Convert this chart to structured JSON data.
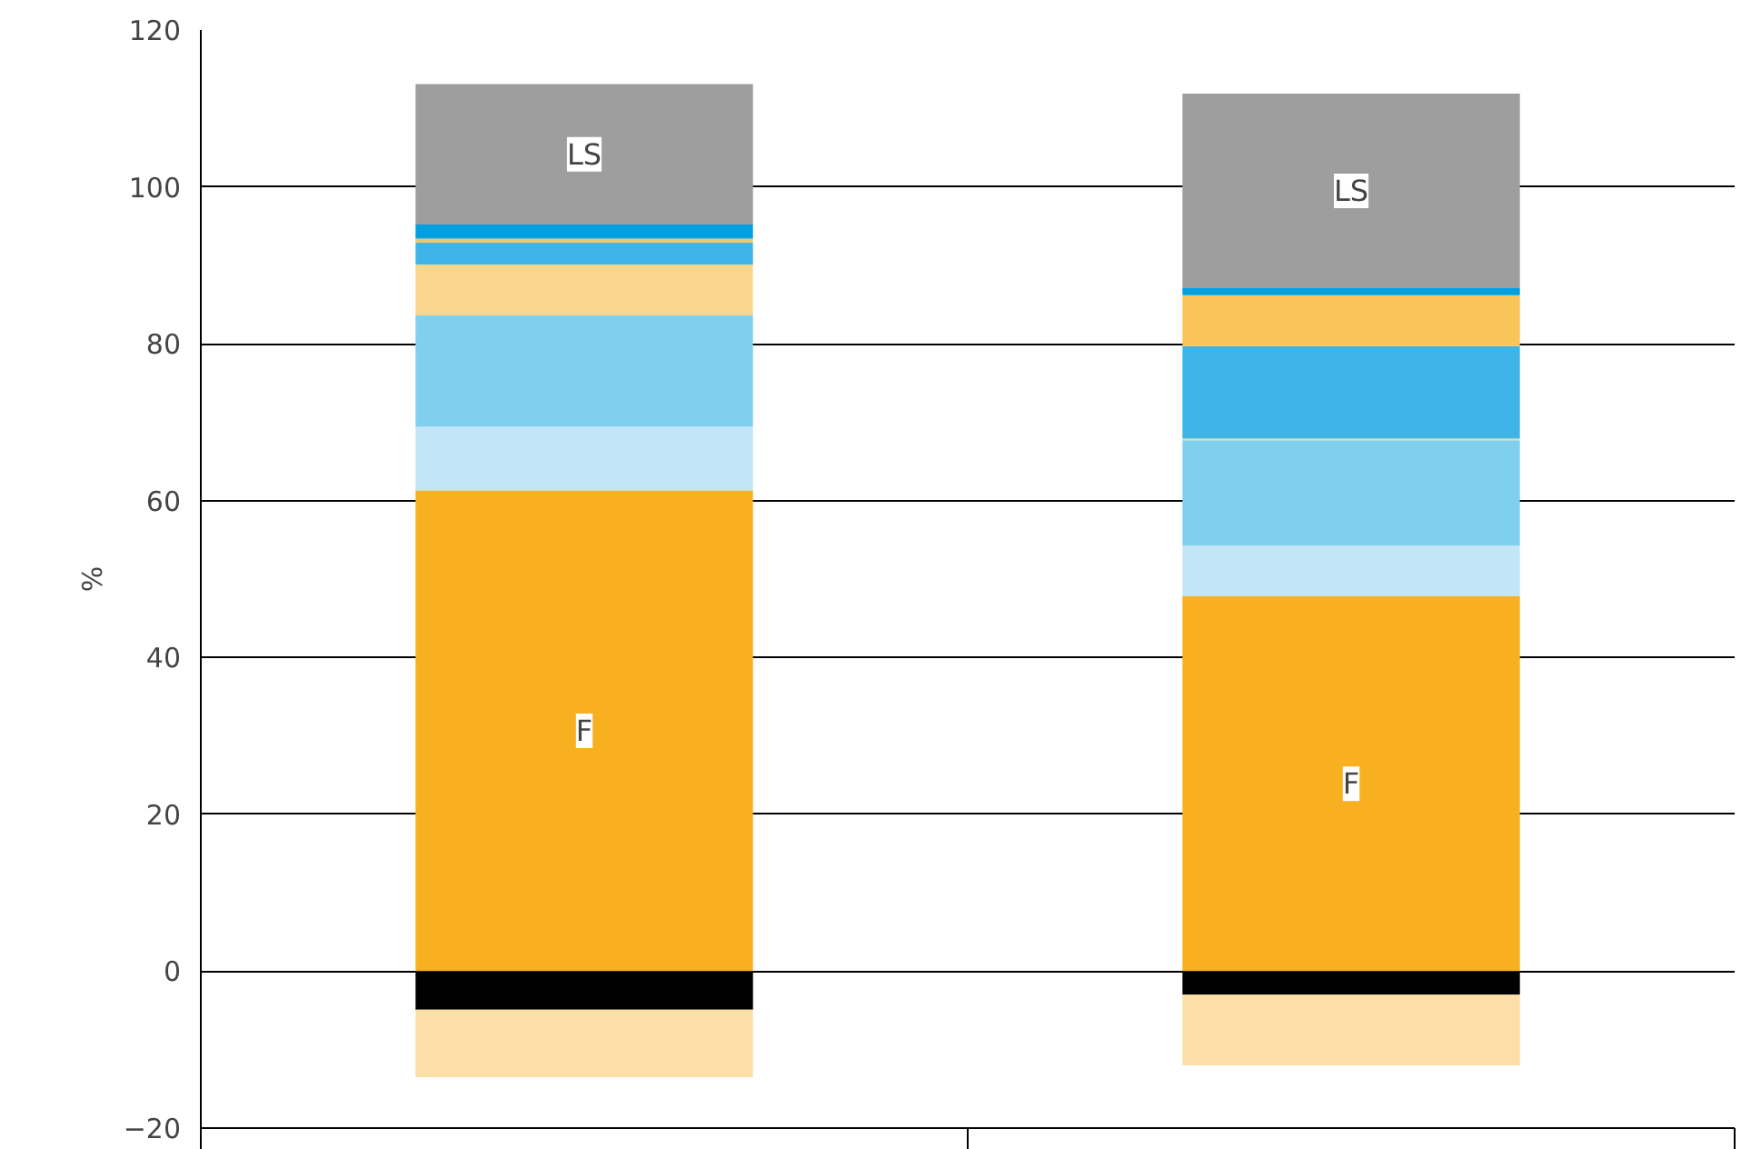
{
  "chart_data": {
    "type": "bar",
    "stacked": true,
    "categories": [
      null,
      null
    ],
    "ylabel": "%",
    "ylim": [
      -20,
      120
    ],
    "yticks": [
      {
        "value": -20,
        "label": "−20"
      },
      0,
      20,
      40,
      60,
      80,
      100,
      120
    ],
    "grid": "y",
    "tick_labels": "y",
    "series": [
      {
        "name": "F",
        "color": "#f8b020",
        "values": [
          61.3,
          47.8
        ]
      },
      {
        "color": "#c2e6f6",
        "values": [
          8.1,
          6.5
        ]
      },
      {
        "color": "#7fcfef",
        "values": [
          14.2,
          13.4
        ]
      },
      {
        "color": "#fbd78e",
        "values": [
          6.5,
          0.2
        ]
      },
      {
        "color": "#3fb4e8",
        "values": [
          2.8,
          11.8
        ]
      },
      {
        "color": "#f9c45a",
        "values": [
          0.5,
          6.5
        ]
      },
      {
        "color": "#00a0e0",
        "values": [
          1.8,
          0.9
        ]
      },
      {
        "name": "LS",
        "color": "#9e9e9e",
        "values": [
          17.9,
          24.8
        ]
      },
      {
        "color": "#000000",
        "values": [
          -4.9,
          -3.0
        ]
      },
      {
        "color": "#fcdfa6",
        "values": [
          -8.6,
          -9.0
        ]
      }
    ]
  }
}
